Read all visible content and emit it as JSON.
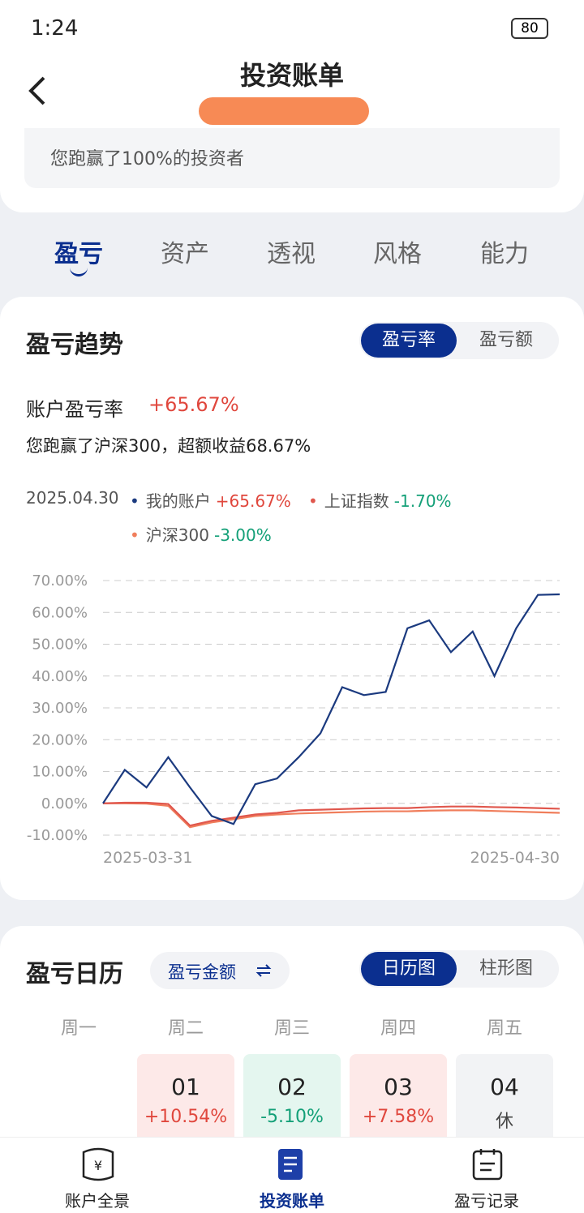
{
  "status_bar": {
    "time": "1:24",
    "battery": "80"
  },
  "header": {
    "title": "投资账单",
    "summary": "您跑赢了100%的投资者"
  },
  "tabs": [
    "盈亏",
    "资产",
    "透视",
    "风格",
    "能力"
  ],
  "trend_card": {
    "title": "盈亏趋势",
    "toggle": [
      "盈亏率",
      "盈亏额"
    ],
    "rate_label": "账户盈亏率",
    "rate_value": "+65.67%",
    "note": "您跑赢了沪深300，超额收益68.67%"
  },
  "chart_data": {
    "type": "line",
    "legend_date": "2025.04.30",
    "categories": [
      "2025-03-31",
      null,
      null,
      null,
      null,
      null,
      null,
      null,
      null,
      null,
      null,
      null,
      null,
      null,
      null,
      null,
      null,
      null,
      null,
      null,
      null,
      "2025-04-30"
    ],
    "series": [
      {
        "name": "我的账户",
        "value_label": "+65.67%",
        "color": "#1b3a7f",
        "values": [
          0,
          10.5,
          5,
          14.5,
          5,
          -4,
          -6.5,
          6,
          7.8,
          14.5,
          22,
          36.5,
          34,
          35,
          55,
          57.5,
          47.5,
          54,
          40,
          55,
          65.5,
          65.67
        ]
      },
      {
        "name": "上证指数",
        "value_label": "-1.70%",
        "color": "#e0574d",
        "values": [
          0,
          0.2,
          0.2,
          -0.2,
          -7,
          -5.5,
          -4.5,
          -3.5,
          -3,
          -2.2,
          -2,
          -1.8,
          -1.6,
          -1.5,
          -1.5,
          -1.2,
          -1,
          -1,
          -1.2,
          -1.3,
          -1.5,
          -1.7
        ]
      },
      {
        "name": "沪深300",
        "value_label": "-3.00%",
        "color": "#f07e5c",
        "values": [
          0,
          0,
          -0.1,
          -0.8,
          -7.5,
          -6,
          -5,
          -4,
          -3.5,
          -3.2,
          -3,
          -2.8,
          -2.6,
          -2.5,
          -2.5,
          -2.3,
          -2.2,
          -2.2,
          -2.4,
          -2.6,
          -2.8,
          -3
        ]
      }
    ],
    "ylim": [
      -10,
      70
    ],
    "yticks": [
      {
        "value": -10,
        "label": "-10.00%"
      },
      {
        "value": 0,
        "label": "0.00%"
      },
      {
        "value": 10,
        "label": "10.00%"
      },
      {
        "value": 20,
        "label": "20.00%"
      },
      {
        "value": 30,
        "label": "30.00%"
      },
      {
        "value": 40,
        "label": "40.00%"
      },
      {
        "value": 50,
        "label": "50.00%"
      },
      {
        "value": 60,
        "label": "60.00%"
      },
      {
        "value": 70,
        "label": "70.00%"
      }
    ],
    "grid": true
  },
  "calendar": {
    "title": "盈亏日历",
    "mode": "盈亏金额",
    "toggle": [
      "日历图",
      "柱形图"
    ],
    "weekdays": [
      "周一",
      "周二",
      "周三",
      "周四",
      "周五"
    ],
    "days": [
      {
        "day": "01",
        "value": "+10.54%"
      },
      {
        "day": "02",
        "value": "-5.10%"
      },
      {
        "day": "03",
        "value": "+7.58%"
      },
      {
        "day": "04",
        "value": "休"
      }
    ]
  },
  "bottom_nav": [
    "账户全景",
    "投资账单",
    "盈亏记录"
  ]
}
